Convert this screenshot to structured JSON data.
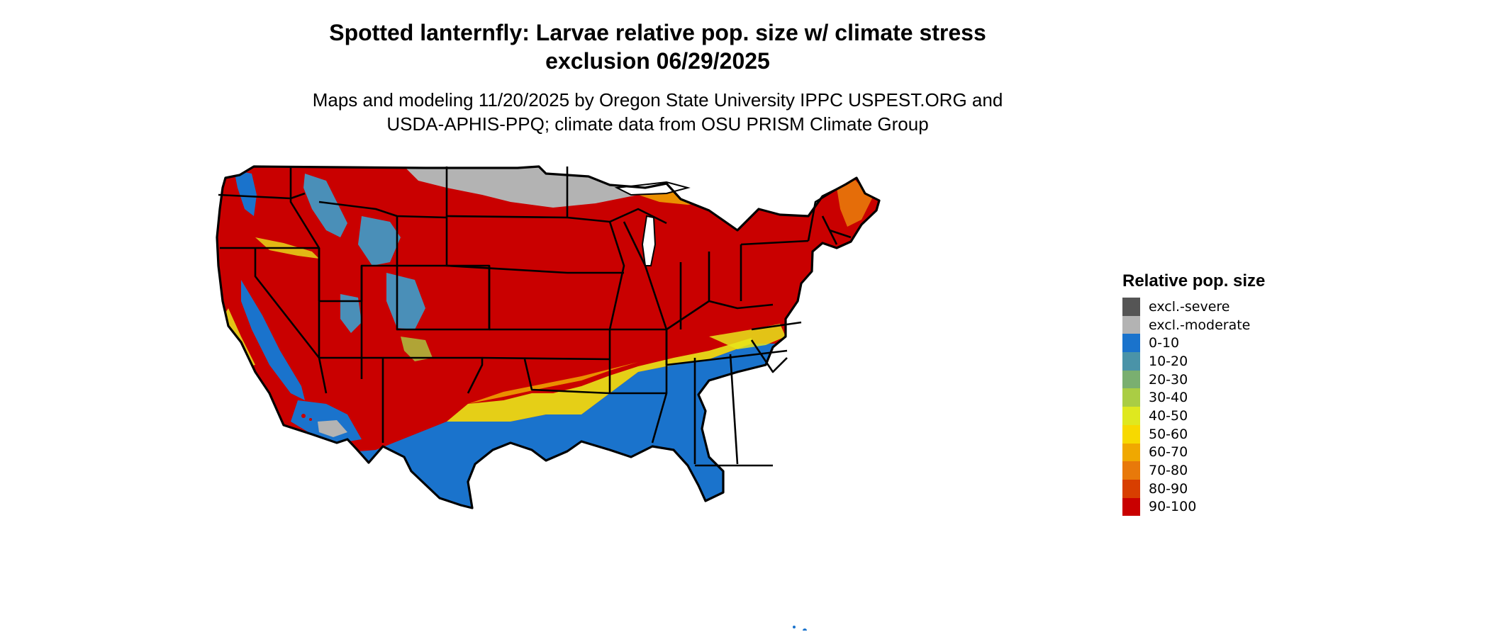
{
  "title": {
    "line1": "Spotted lanternfly: Larvae relative pop. size w/ climate stress",
    "line2": "exclusion 06/29/2025"
  },
  "subtitle": {
    "line1": "Maps and modeling 11/20/2025 by Oregon State University IPPC USPEST.ORG and",
    "line2": "USDA-APHIS-PPQ; climate data from OSU PRISM Climate Group"
  },
  "map": {
    "region": "Contiguous United States",
    "colors": {
      "high": "#c90000",
      "low": "#1a73cc",
      "moderate_exclusion": "#b3b3b3",
      "transition_yellow": "#e8e51a",
      "transition_orange": "#f0a800",
      "transition_green": "#a8c84a",
      "mountain_blue": "#4a8fb8",
      "state_border": "#000000"
    }
  },
  "legend": {
    "title": "Relative pop. size",
    "items": [
      {
        "label": "excl.-severe",
        "color": "#555555"
      },
      {
        "label": "excl.-moderate",
        "color": "#b3b3b3"
      },
      {
        "label": "0-10",
        "color": "#1a73cc"
      },
      {
        "label": "10-20",
        "color": "#4a93a8"
      },
      {
        "label": "20-30",
        "color": "#7aaf70"
      },
      {
        "label": "30-40",
        "color": "#aacd44"
      },
      {
        "label": "40-50",
        "color": "#dfe81f"
      },
      {
        "label": "50-60",
        "color": "#f7d900"
      },
      {
        "label": "60-70",
        "color": "#f0a800"
      },
      {
        "label": "70-80",
        "color": "#e8790a"
      },
      {
        "label": "80-90",
        "color": "#d83e00"
      },
      {
        "label": "90-100",
        "color": "#c90000"
      }
    ]
  }
}
